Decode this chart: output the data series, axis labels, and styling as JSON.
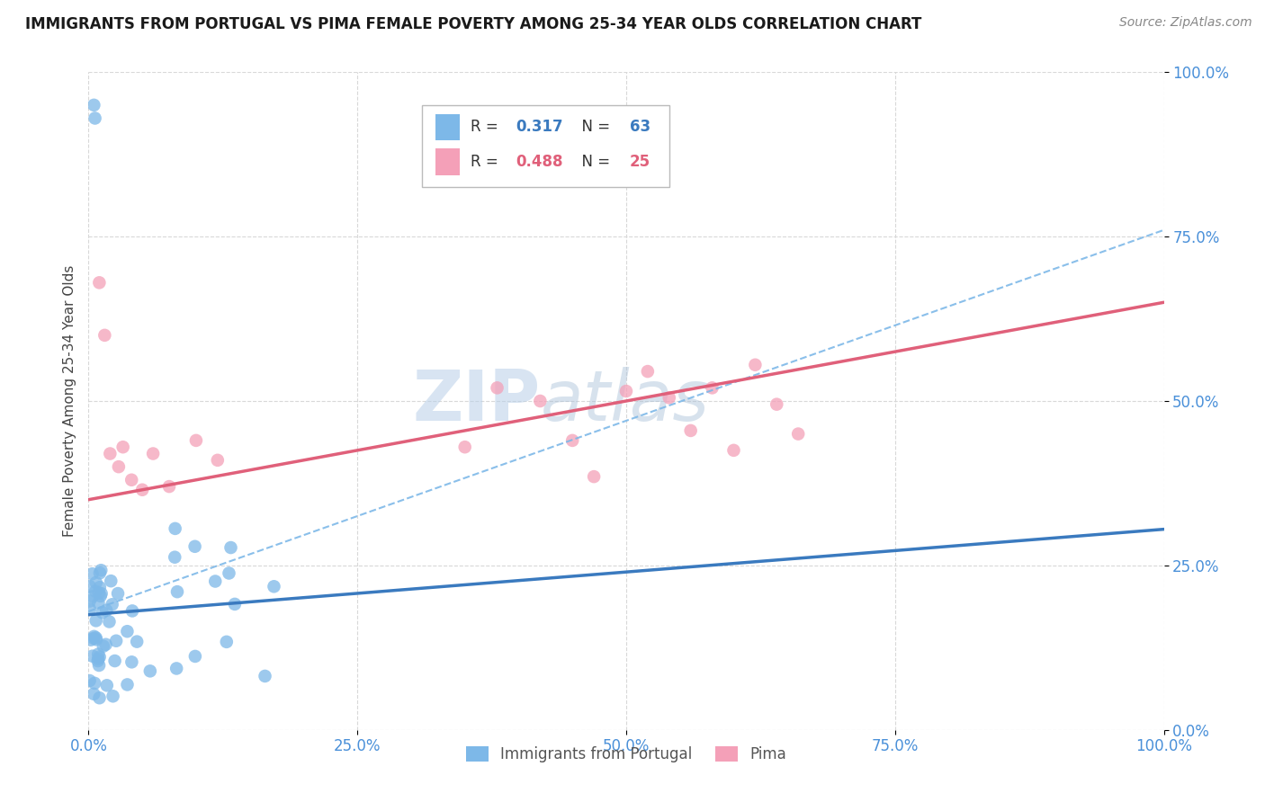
{
  "title": "IMMIGRANTS FROM PORTUGAL VS PIMA FEMALE POVERTY AMONG 25-34 YEAR OLDS CORRELATION CHART",
  "source": "Source: ZipAtlas.com",
  "ylabel": "Female Poverty Among 25-34 Year Olds",
  "xlim": [
    0,
    1.0
  ],
  "ylim": [
    0,
    1.0
  ],
  "xticks": [
    0.0,
    0.25,
    0.5,
    0.75,
    1.0
  ],
  "xticklabels": [
    "0.0%",
    "25.0%",
    "50.0%",
    "75.0%",
    "100.0%"
  ],
  "yticks": [
    0.0,
    0.25,
    0.5,
    0.75,
    1.0
  ],
  "yticklabels": [
    "0.0%",
    "25.0%",
    "50.0%",
    "75.0%",
    "100.0%"
  ],
  "legend_labels": [
    "Immigrants from Portugal",
    "Pima"
  ],
  "r1": "0.317",
  "n1": "63",
  "r2": "0.488",
  "n2": "25",
  "color1": "#7db8e8",
  "color2": "#f4a0b8",
  "trendline1_color": "#3a7abf",
  "trendline2_color": "#e0607a",
  "dash_color": "#7db8e8",
  "watermark_zip": "ZIP",
  "watermark_atlas": "atlas",
  "background_color": "#ffffff",
  "grid_color": "#d8d8d8",
  "tick_color": "#4a90d9",
  "title_color": "#1a1a1a",
  "ylabel_color": "#444444",
  "source_color": "#888888",
  "trendline1_slope": 0.13,
  "trendline1_intercept": 0.175,
  "trendline2_slope": 0.3,
  "trendline2_intercept": 0.35,
  "dash_slope": 0.58,
  "dash_intercept": 0.18
}
